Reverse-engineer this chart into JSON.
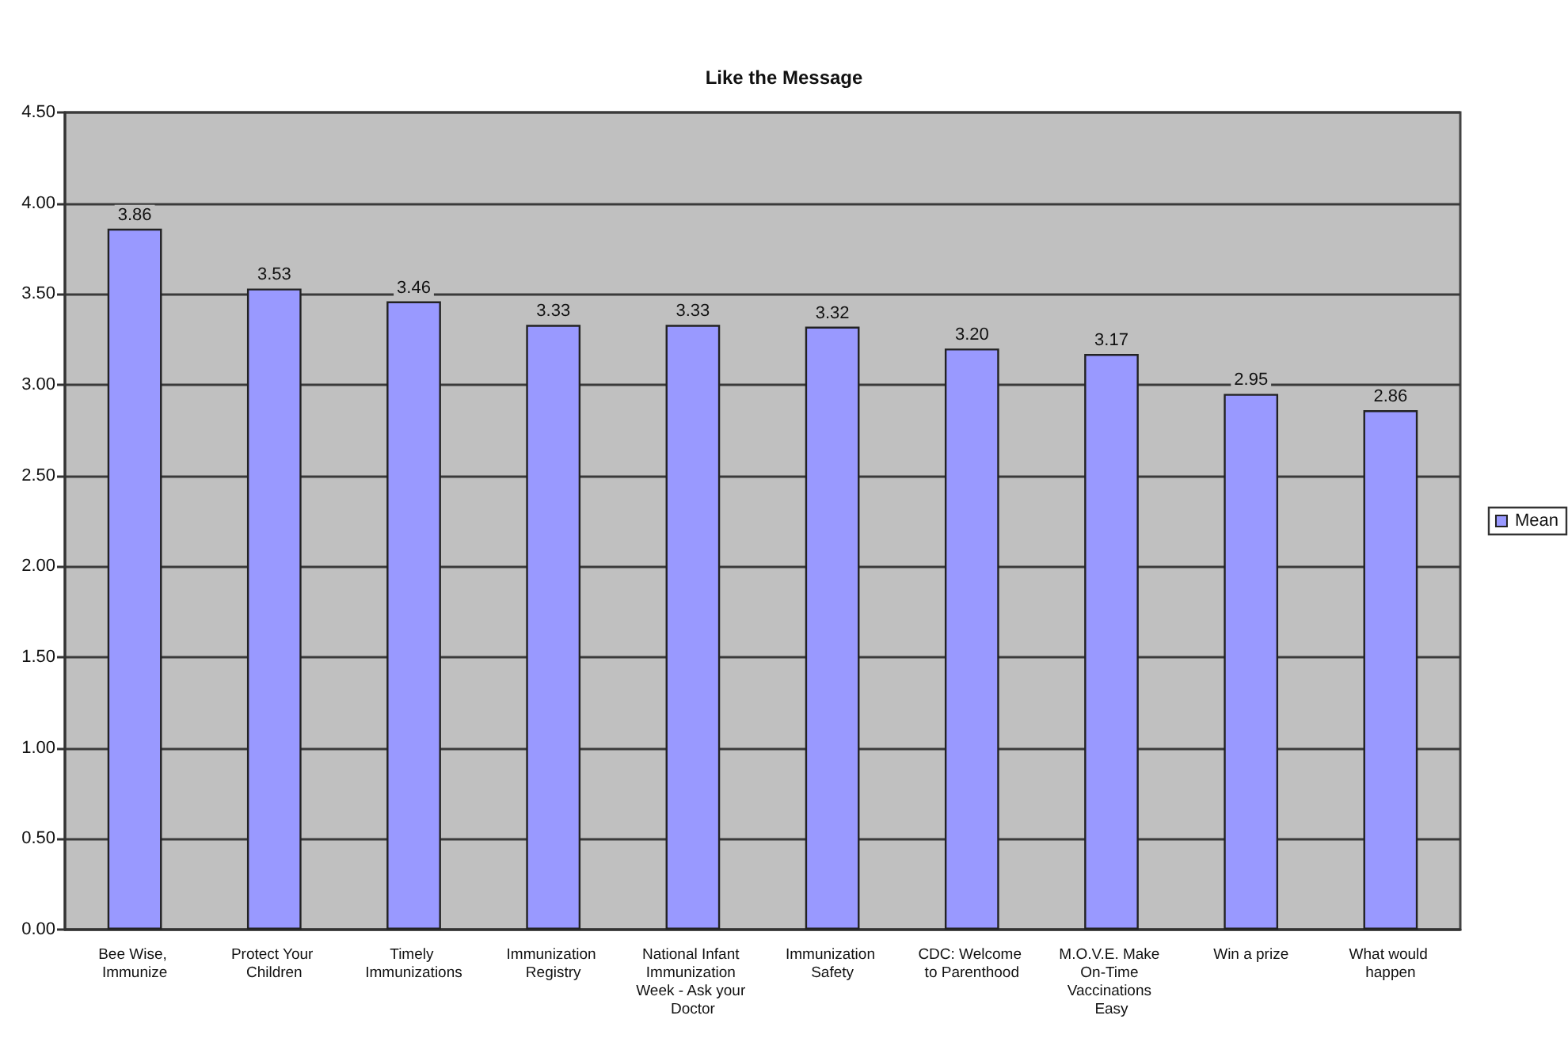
{
  "chart_data": {
    "type": "bar",
    "title": "Like the Message",
    "categories": [
      "Bee Wise, Immunize",
      "Protect Your Children",
      "Timely Immunizations",
      "Immunization Registry",
      "National Infant Immunization Week - Ask your Doctor",
      "Immunization Safety",
      "CDC: Welcome to Parenthood",
      "M.O.V.E. Make On-Time Vaccinations Easy",
      "Win a prize",
      "What would happen"
    ],
    "series": [
      {
        "name": "Mean",
        "color": "#9999ff",
        "values": [
          3.86,
          3.53,
          3.46,
          3.33,
          3.33,
          3.32,
          3.2,
          3.17,
          2.95,
          2.86
        ],
        "value_labels": [
          "3.86",
          "3.53",
          "3.46",
          "3.33",
          "3.33",
          "3.32",
          "3.20",
          "3.17",
          "2.95",
          "2.86"
        ]
      }
    ],
    "ylim": [
      0,
      4.5
    ],
    "yticks": [
      {
        "value": 0,
        "label": "0.00"
      },
      {
        "value": 0.5,
        "label": "0.50"
      },
      {
        "value": 1,
        "label": "1.00"
      },
      {
        "value": 1.5,
        "label": "1.50"
      },
      {
        "value": 2,
        "label": "2.00"
      },
      {
        "value": 2.5,
        "label": "2.50"
      },
      {
        "value": 3,
        "label": "3.00"
      },
      {
        "value": 3.5,
        "label": "3.50"
      },
      {
        "value": 4,
        "label": "4.00"
      },
      {
        "value": 4.5,
        "label": "4.50"
      }
    ],
    "grid": "y",
    "legend": "right"
  }
}
